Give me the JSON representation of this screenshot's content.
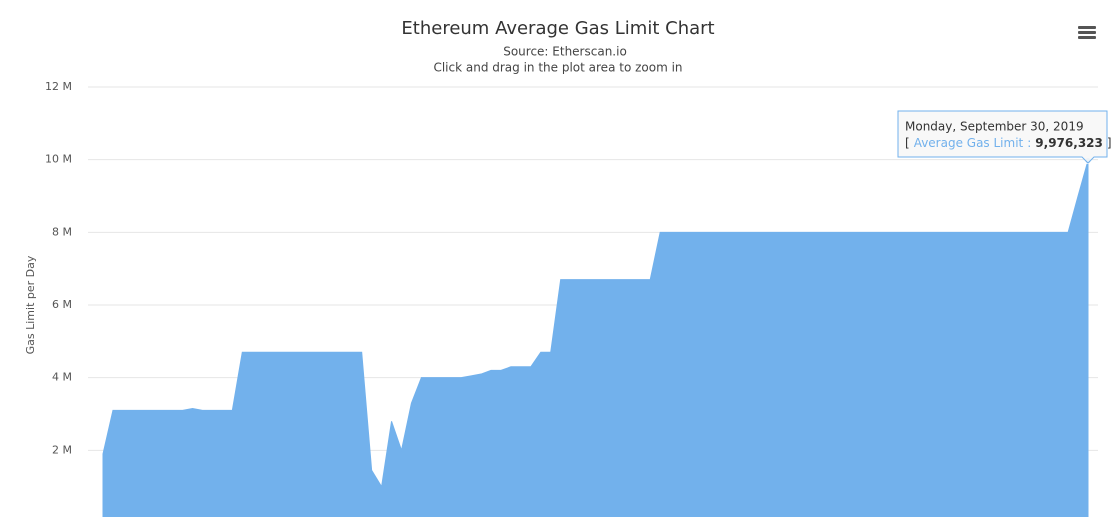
{
  "chart_data": {
    "type": "area",
    "title": "Ethereum Average Gas Limit Chart",
    "subtitle": [
      "Source: Etherscan.io",
      "Click and drag in the plot area to zoom in"
    ],
    "y_axis_label": "Gas Limit per Day",
    "ylim": [
      0,
      12000000
    ],
    "yticks": [
      {
        "value": 2000000,
        "label": "2 M"
      },
      {
        "value": 4000000,
        "label": "4 M"
      },
      {
        "value": 6000000,
        "label": "6 M"
      },
      {
        "value": 8000000,
        "label": "8 M"
      },
      {
        "value": 10000000,
        "label": "10 M"
      },
      {
        "value": 12000000,
        "label": "12 M"
      }
    ],
    "grid": true,
    "categories": [
      null,
      null,
      null,
      null,
      null,
      null,
      null,
      null,
      null,
      null,
      null,
      null,
      null,
      null,
      null,
      null,
      null,
      null,
      null,
      null,
      null,
      null,
      null,
      null,
      null,
      null,
      null,
      null,
      null,
      null,
      null,
      null,
      null,
      null,
      null,
      null,
      null,
      null,
      null,
      null,
      null,
      null,
      null,
      null,
      null,
      null,
      null,
      null,
      null,
      null,
      null,
      null,
      null,
      null,
      null,
      null,
      null,
      null,
      null,
      null,
      null,
      null,
      null,
      null,
      null,
      null,
      null,
      null,
      null,
      null,
      null,
      null,
      null,
      null,
      null,
      null,
      null,
      null,
      null,
      null,
      null,
      null,
      null,
      null,
      null,
      null,
      null,
      null,
      null,
      null,
      null,
      null,
      null,
      null,
      null,
      null,
      null,
      null,
      null,
      null
    ],
    "series": [
      {
        "name": "Average Gas Limit",
        "color": "#72b1ec",
        "values": [
          1900000,
          3100000,
          3100000,
          3100000,
          3100000,
          3100000,
          3100000,
          3100000,
          3100000,
          3150000,
          3100000,
          3100000,
          3100000,
          3100000,
          4700000,
          4700000,
          4700000,
          4700000,
          4700000,
          4700000,
          4700000,
          4700000,
          4700000,
          4700000,
          4700000,
          4700000,
          4700000,
          1450000,
          1000000,
          2800000,
          2000000,
          3300000,
          4000000,
          4000000,
          4000000,
          4000000,
          4000000,
          4050000,
          4100000,
          4200000,
          4200000,
          4300000,
          4300000,
          4300000,
          4700000,
          4700000,
          6700000,
          6700000,
          6700000,
          6700000,
          6700000,
          6700000,
          6700000,
          6700000,
          6700000,
          6700000,
          8000000,
          8000000,
          8000000,
          8000000,
          8000000,
          8000000,
          8000000,
          8000000,
          8000000,
          8000000,
          8000000,
          8000000,
          8000000,
          8000000,
          8000000,
          8000000,
          8000000,
          8000000,
          8000000,
          8000000,
          8000000,
          8000000,
          8000000,
          8000000,
          8000000,
          8000000,
          8000000,
          8000000,
          8000000,
          8000000,
          8000000,
          8000000,
          8000000,
          8000000,
          8000000,
          8000000,
          8000000,
          8000000,
          8000000,
          8000000,
          8000000,
          8000000,
          9000000,
          9976323
        ]
      }
    ],
    "tooltip": {
      "date": "Monday, September 30, 2019",
      "open": "[",
      "separator": ":",
      "value_label": "9,976,323",
      "close": "]"
    }
  }
}
